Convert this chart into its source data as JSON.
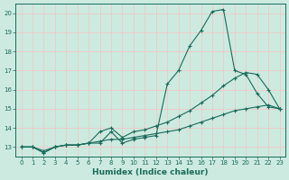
{
  "xlabel": "Humidex (Indice chaleur)",
  "background_color": "#cceae0",
  "grid_color": "#f0c8c8",
  "line_color": "#1a6b5a",
  "xlim": [
    -0.5,
    23.5
  ],
  "ylim": [
    12.5,
    20.5
  ],
  "xticks": [
    0,
    1,
    2,
    3,
    4,
    5,
    6,
    7,
    8,
    9,
    10,
    11,
    12,
    13,
    14,
    15,
    16,
    17,
    18,
    19,
    20,
    21,
    22,
    23
  ],
  "yticks": [
    13,
    14,
    15,
    16,
    17,
    18,
    19,
    20
  ],
  "series1_x": [
    0,
    1,
    2,
    3,
    4,
    5,
    6,
    7,
    8,
    9,
    10,
    11,
    12,
    13,
    14,
    15,
    16,
    17,
    18,
    19,
    20,
    21,
    22,
    23
  ],
  "series1_y": [
    13.0,
    13.0,
    12.7,
    13.0,
    13.1,
    13.1,
    13.2,
    13.2,
    13.8,
    13.2,
    13.4,
    13.5,
    13.6,
    16.3,
    17.0,
    18.3,
    19.1,
    20.1,
    20.2,
    17.0,
    16.8,
    15.8,
    15.1,
    15.0
  ],
  "series2_x": [
    0,
    1,
    2,
    3,
    4,
    5,
    6,
    7,
    8,
    9,
    10,
    11,
    12,
    13,
    14,
    15,
    16,
    17,
    18,
    19,
    20,
    21,
    22,
    23
  ],
  "series2_y": [
    13.0,
    13.0,
    12.7,
    13.0,
    13.1,
    13.1,
    13.2,
    13.8,
    14.0,
    13.5,
    13.8,
    13.9,
    14.1,
    14.3,
    14.6,
    14.9,
    15.3,
    15.7,
    16.2,
    16.6,
    16.9,
    16.8,
    16.0,
    15.0
  ],
  "series3_x": [
    0,
    1,
    2,
    3,
    4,
    5,
    6,
    7,
    8,
    9,
    10,
    11,
    12,
    13,
    14,
    15,
    16,
    17,
    18,
    19,
    20,
    21,
    22,
    23
  ],
  "series3_y": [
    13.0,
    13.0,
    12.8,
    13.0,
    13.1,
    13.1,
    13.2,
    13.3,
    13.4,
    13.4,
    13.5,
    13.6,
    13.7,
    13.8,
    13.9,
    14.1,
    14.3,
    14.5,
    14.7,
    14.9,
    15.0,
    15.1,
    15.2,
    15.0
  ]
}
